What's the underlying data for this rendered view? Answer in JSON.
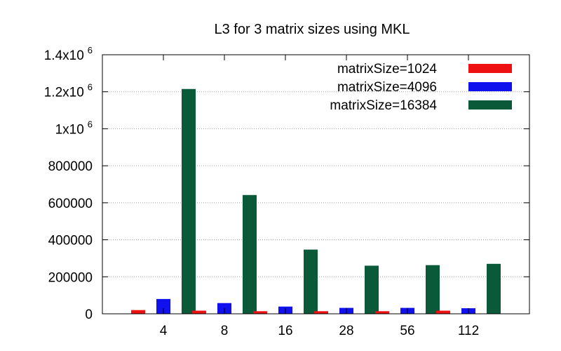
{
  "chart_data": {
    "type": "bar",
    "title": "L3 for 3 matrix sizes using MKL",
    "xlabel": "",
    "ylabel": "",
    "categories": [
      "4",
      "8",
      "16",
      "28",
      "56",
      "112"
    ],
    "ylim": [
      0,
      1400000
    ],
    "y_ticks": [
      {
        "value": 0,
        "base": "0",
        "exp": ""
      },
      {
        "value": 200000,
        "base": "200000",
        "exp": ""
      },
      {
        "value": 400000,
        "base": "400000",
        "exp": ""
      },
      {
        "value": 600000,
        "base": "600000",
        "exp": ""
      },
      {
        "value": 800000,
        "base": "800000",
        "exp": ""
      },
      {
        "value": 1000000,
        "base": "1x10",
        "exp": "6"
      },
      {
        "value": 1200000,
        "base": "1.2x10",
        "exp": "6"
      },
      {
        "value": 1400000,
        "base": "1.4x10",
        "exp": "6"
      }
    ],
    "grid": true,
    "legend_position": "top-right",
    "series": [
      {
        "name": "matrixSize=1024",
        "color": "#ee1111",
        "values": [
          20000,
          17000,
          14000,
          14000,
          14000,
          17000
        ]
      },
      {
        "name": "matrixSize=4096",
        "color": "#1111ee",
        "values": [
          80000,
          58000,
          39000,
          32000,
          32000,
          30000
        ]
      },
      {
        "name": "matrixSize=16384",
        "color": "#0a5a3a",
        "values": [
          1215000,
          642000,
          347000,
          260000,
          263000,
          270000
        ]
      }
    ]
  }
}
